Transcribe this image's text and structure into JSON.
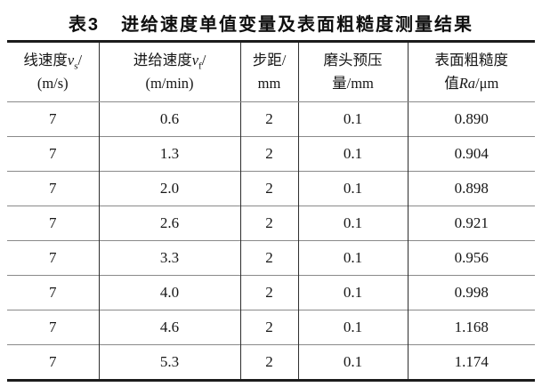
{
  "page": {
    "background": "#ffffff",
    "text_color": "#161616",
    "border_outer_color": "#1c1c1c",
    "border_vertical_color": "#2e2e2e",
    "row_separator_color": "#8a8a8a"
  },
  "title": {
    "label": "表3",
    "text": "进给速度单值变量及表面粗糙度测量结果"
  },
  "table": {
    "columns": [
      {
        "name": "线速度",
        "var": "v",
        "var_sub": "s",
        "slash": "/",
        "unit": "(m/s)"
      },
      {
        "name": "进给速度",
        "var": "v",
        "var_sub": "f",
        "slash": "/",
        "unit": "(m/min)"
      },
      {
        "name": "步距/",
        "unit": "mm"
      },
      {
        "name": "磨头预压",
        "unit": "量/mm"
      },
      {
        "name": "表面粗糙度",
        "unit_prefix": "值",
        "unit_var": "Ra",
        "unit_suffix": "/μm"
      }
    ],
    "rows": [
      [
        "7",
        "0.6",
        "2",
        "0.1",
        "0.890"
      ],
      [
        "7",
        "1.3",
        "2",
        "0.1",
        "0.904"
      ],
      [
        "7",
        "2.0",
        "2",
        "0.1",
        "0.898"
      ],
      [
        "7",
        "2.6",
        "2",
        "0.1",
        "0.921"
      ],
      [
        "7",
        "3.3",
        "2",
        "0.1",
        "0.956"
      ],
      [
        "7",
        "4.0",
        "2",
        "0.1",
        "0.998"
      ],
      [
        "7",
        "4.6",
        "2",
        "0.1",
        "1.168"
      ],
      [
        "7",
        "5.3",
        "2",
        "0.1",
        "1.174"
      ]
    ]
  }
}
